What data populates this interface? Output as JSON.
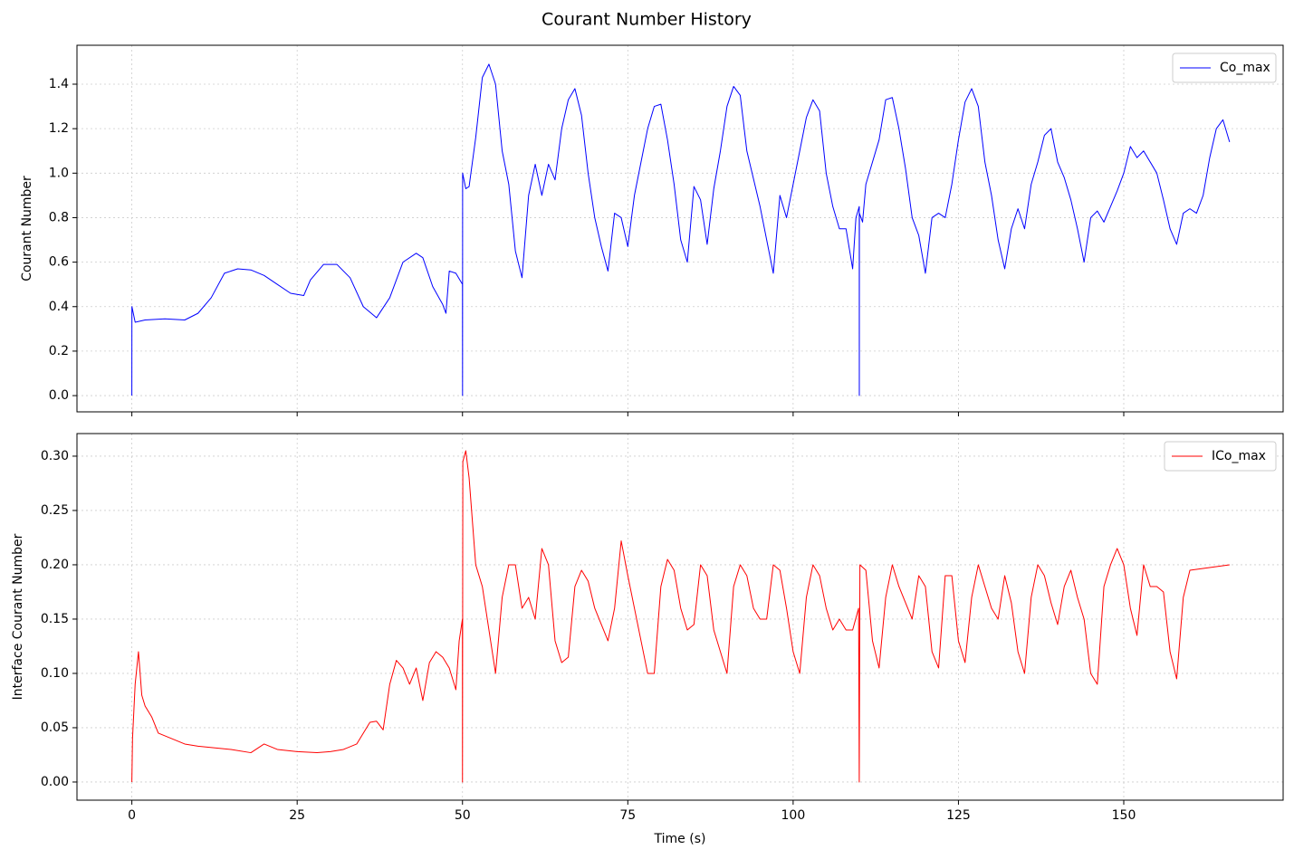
{
  "title": "Courant Number History",
  "chart_data": [
    {
      "type": "line",
      "ylabel": "Courant Number",
      "legend": "upper right",
      "grid": true,
      "xlim": [
        -8.3,
        174.1
      ],
      "ylim": [
        -0.073,
        1.575
      ],
      "xticks": [
        0,
        25,
        50,
        75,
        100,
        125,
        150
      ],
      "yticks": [
        {
          "value": 0,
          "label": "0.0"
        },
        0.2,
        0.4,
        0.6,
        0.8,
        {
          "value": 1,
          "label": "1.0"
        },
        1.2,
        1.4
      ],
      "x": [
        0,
        0.01,
        0.5,
        2,
        5,
        8,
        10,
        12,
        14,
        16,
        18,
        20,
        22,
        24,
        26,
        27,
        29,
        31,
        33,
        35,
        37,
        39,
        41,
        43,
        44,
        45.5,
        47,
        47.5,
        48,
        49,
        50,
        50.01,
        50.02,
        50.5,
        51,
        52,
        53,
        54,
        55,
        56,
        57,
        58,
        59,
        60,
        61,
        62,
        63,
        64,
        65,
        66,
        67,
        68,
        69,
        70,
        71,
        72,
        73,
        74,
        75,
        76,
        77,
        78,
        79,
        80,
        81,
        82,
        83,
        84,
        85,
        86,
        87,
        88,
        89,
        90,
        91,
        92,
        93,
        95,
        97,
        98,
        99,
        100,
        101,
        102,
        103,
        104,
        105,
        106,
        107,
        108,
        109,
        109.5,
        110,
        110.01,
        110.02,
        110.5,
        111,
        113,
        114,
        115,
        116,
        117,
        118,
        119,
        120,
        121,
        122,
        123,
        124,
        125,
        126,
        127,
        128,
        129,
        130,
        131,
        132,
        133,
        134,
        135,
        136,
        137,
        138,
        139,
        140,
        141,
        142,
        143,
        144,
        145,
        146,
        147,
        148,
        149,
        150,
        151,
        152,
        153,
        155,
        156,
        157,
        158,
        159,
        160,
        161,
        162,
        163,
        164,
        165,
        166
      ],
      "series": [
        {
          "name": "Co_max",
          "color": "#0000ff",
          "values": [
            0,
            0.4,
            0.33,
            0.34,
            0.345,
            0.34,
            0.37,
            0.44,
            0.55,
            0.57,
            0.565,
            0.54,
            0.5,
            0.46,
            0.45,
            0.52,
            0.59,
            0.59,
            0.53,
            0.4,
            0.35,
            0.44,
            0.6,
            0.64,
            0.62,
            0.49,
            0.41,
            0.37,
            0.56,
            0.55,
            0.5,
            0,
            1.0,
            0.93,
            0.94,
            1.16,
            1.43,
            1.49,
            1.4,
            1.1,
            0.95,
            0.65,
            0.53,
            0.9,
            1.04,
            0.9,
            1.04,
            0.97,
            1.2,
            1.33,
            1.38,
            1.26,
            1.0,
            0.8,
            0.67,
            0.56,
            0.82,
            0.8,
            0.67,
            0.9,
            1.05,
            1.2,
            1.3,
            1.31,
            1.15,
            0.95,
            0.7,
            0.6,
            0.94,
            0.88,
            0.68,
            0.93,
            1.1,
            1.3,
            1.39,
            1.35,
            1.1,
            0.85,
            0.55,
            0.9,
            0.8,
            0.95,
            1.1,
            1.25,
            1.33,
            1.28,
            1.0,
            0.85,
            0.75,
            0.75,
            0.57,
            0.8,
            0.85,
            0,
            0.82,
            0.78,
            0.95,
            1.15,
            1.33,
            1.34,
            1.2,
            1.02,
            0.8,
            0.72,
            0.55,
            0.8,
            0.82,
            0.8,
            0.95,
            1.15,
            1.32,
            1.38,
            1.3,
            1.05,
            0.9,
            0.7,
            0.57,
            0.75,
            0.84,
            0.75,
            0.95,
            1.05,
            1.17,
            1.2,
            1.05,
            0.98,
            0.88,
            0.75,
            0.6,
            0.8,
            0.83,
            0.78,
            0.85,
            0.92,
            1.0,
            1.12,
            1.07,
            1.1,
            1.0,
            0.88,
            0.75,
            0.68,
            0.82,
            0.84,
            0.82,
            0.9,
            1.07,
            1.2,
            1.24,
            1.14
          ]
        }
      ]
    },
    {
      "type": "line",
      "xlabel": "Time (s)",
      "ylabel": "Interface Courant Number",
      "legend": "upper right",
      "grid": true,
      "xlim": [
        -8.3,
        174.1
      ],
      "ylim": [
        -0.0167,
        0.3208
      ],
      "xticks": [
        0,
        25,
        50,
        75,
        100,
        125,
        150
      ],
      "yticks": [
        {
          "value": 0,
          "label": "0.00"
        },
        0.05,
        {
          "value": 0.1,
          "label": "0.10"
        },
        0.15,
        {
          "value": 0.2,
          "label": "0.20"
        },
        0.25,
        {
          "value": 0.3,
          "label": "0.30"
        }
      ],
      "x": [
        0,
        0.1,
        0.5,
        1,
        1.5,
        2,
        3,
        4,
        6,
        8,
        10,
        15,
        18,
        20,
        22,
        25,
        28,
        30,
        32,
        34,
        36,
        37,
        38,
        39,
        40,
        41,
        42,
        43,
        44,
        45,
        46,
        47,
        48,
        49,
        49.5,
        49.99,
        50,
        50.05,
        50.5,
        51,
        52,
        53,
        54,
        55,
        56,
        57,
        58,
        59,
        60,
        61,
        62,
        63,
        64,
        65,
        66,
        67,
        68,
        69,
        70,
        72,
        73,
        74,
        75,
        76,
        77,
        78,
        79,
        80,
        81,
        82,
        83,
        84,
        85,
        86,
        87,
        88,
        89,
        90,
        91,
        92,
        93,
        94,
        95,
        96,
        97,
        98,
        99,
        100,
        101,
        102,
        103,
        104,
        105,
        106,
        107,
        108,
        109,
        109.9,
        110,
        110.1,
        111,
        112,
        113,
        114,
        115,
        116,
        117,
        118,
        119,
        120,
        121,
        122,
        123,
        124,
        125,
        126,
        127,
        128,
        129,
        130,
        131,
        132,
        133,
        134,
        135,
        136,
        137,
        138,
        139,
        140,
        141,
        142,
        143,
        144,
        145,
        146,
        147,
        148,
        149,
        150,
        151,
        152,
        153,
        154,
        155,
        156,
        157,
        158,
        159,
        160,
        166
      ],
      "series": [
        {
          "name": "ICo_max",
          "color": "#ff0000",
          "values": [
            0,
            0.04,
            0.09,
            0.12,
            0.08,
            0.07,
            0.06,
            0.045,
            0.04,
            0.035,
            0.033,
            0.03,
            0.027,
            0.035,
            0.03,
            0.028,
            0.027,
            0.028,
            0.03,
            0.035,
            0.055,
            0.056,
            0.048,
            0.09,
            0.112,
            0.105,
            0.09,
            0.105,
            0.075,
            0.11,
            0.12,
            0.115,
            0.105,
            0.085,
            0.13,
            0.15,
            0,
            0.295,
            0.305,
            0.28,
            0.2,
            0.18,
            0.14,
            0.1,
            0.17,
            0.2,
            0.2,
            0.16,
            0.17,
            0.15,
            0.215,
            0.2,
            0.13,
            0.11,
            0.115,
            0.18,
            0.195,
            0.185,
            0.16,
            0.13,
            0.16,
            0.222,
            0.19,
            0.16,
            0.13,
            0.1,
            0.1,
            0.18,
            0.205,
            0.195,
            0.16,
            0.14,
            0.145,
            0.2,
            0.19,
            0.14,
            0.12,
            0.1,
            0.18,
            0.2,
            0.19,
            0.16,
            0.15,
            0.15,
            0.2,
            0.195,
            0.16,
            0.12,
            0.1,
            0.17,
            0.2,
            0.19,
            0.16,
            0.14,
            0.15,
            0.14,
            0.14,
            0.16,
            0,
            0.2,
            0.195,
            0.13,
            0.105,
            0.17,
            0.2,
            0.18,
            0.165,
            0.15,
            0.19,
            0.18,
            0.12,
            0.105,
            0.19,
            0.19,
            0.13,
            0.11,
            0.17,
            0.2,
            0.18,
            0.16,
            0.15,
            0.19,
            0.165,
            0.12,
            0.1,
            0.17,
            0.2,
            0.19,
            0.165,
            0.145,
            0.18,
            0.195,
            0.17,
            0.15,
            0.1,
            0.09,
            0.18,
            0.2,
            0.215,
            0.2,
            0.16,
            0.135,
            0.2,
            0.18,
            0.18,
            0.175,
            0.12,
            0.095,
            0.17,
            0.195,
            0.2
          ]
        }
      ]
    }
  ]
}
